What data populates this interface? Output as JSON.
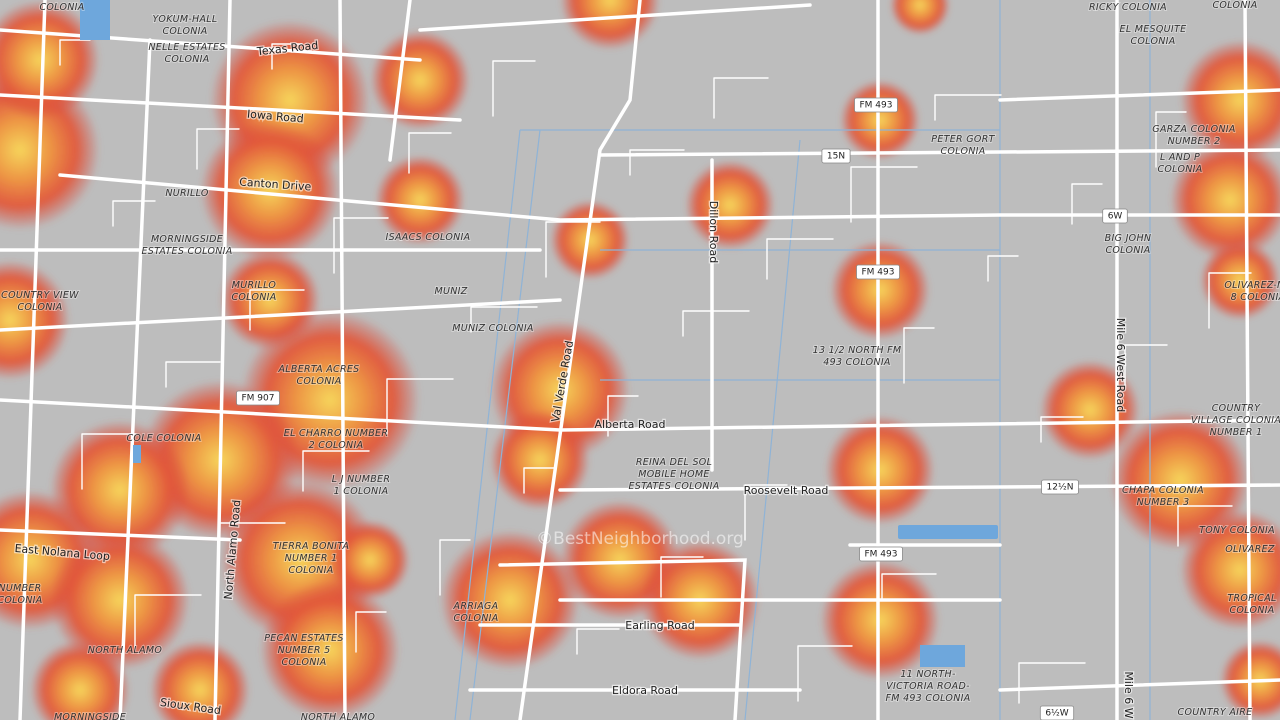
{
  "watermark": "©BestNeighborhood.org",
  "places": [
    [
      "COLONIA"
    ],
    [
      "YOKUM-HALL",
      "COLONIA"
    ],
    [
      "NELLE ESTATES",
      "COLONIA"
    ],
    [
      "NURILLO"
    ],
    [
      "MORNINGSIDE",
      "ESTATES COLONIA"
    ],
    [
      "ISAACS COLONIA"
    ],
    [
      "MUNIZ"
    ],
    [
      "MUNIZ COLONIA"
    ],
    [
      "MURILLO",
      "COLONIA"
    ],
    [
      "COUNTRY VIEW",
      "COLONIA"
    ],
    [
      "ALBERTA ACRES",
      "COLONIA"
    ],
    [
      "COLE COLONIA"
    ],
    [
      "EL CHARRO NUMBER",
      "2 COLONIA"
    ],
    [
      "L J NUMBER",
      "1 COLONIA"
    ],
    [
      "TIERRA BONITA",
      "NUMBER 1",
      "COLONIA"
    ],
    [
      "ARRIAGA",
      "COLONIA"
    ],
    [
      "PECAN ESTATES",
      "NUMBER 5",
      "COLONIA"
    ],
    [
      "NORTH ALAMO"
    ],
    [
      "MORNINGSIDE"
    ],
    [
      "NORTH ALAMO"
    ],
    [
      "REINA DEL SOL",
      "MOBILE HOME",
      "ESTATES COLONIA"
    ],
    [
      "PETER GORT",
      "COLONIA"
    ],
    [
      "13 1/2 NORTH FM",
      "493 COLONIA"
    ],
    [
      "11 NORTH-",
      "VICTORIA ROAD-",
      "FM 493 COLONIA"
    ],
    [
      "RICKY COLONIA"
    ],
    [
      "EL MESQUITE",
      "COLONIA"
    ],
    [
      "GARZA COLONIA",
      "NUMBER 2"
    ],
    [
      "L AND P",
      "COLONIA"
    ],
    [
      "BIG JOHN",
      "COLONIA"
    ],
    [
      "OLIVAREZ-NU",
      "8 COLONIA"
    ],
    [
      "COUNTRY",
      "VILLAGE COLONIA",
      "NUMBER 1"
    ],
    [
      "CHAPA COLONIA",
      "NUMBER 3"
    ],
    [
      "TONY COLONIA"
    ],
    [
      "OLIVAREZ"
    ],
    [
      "TROPICAL",
      "COLONIA"
    ],
    [
      "COUNTRY AIRE"
    ],
    [
      "NUMBER",
      "COLONIA"
    ],
    [
      "COLONIA"
    ]
  ],
  "roads": [
    "Texas Road",
    "Iowa Road",
    "Canton Drive",
    "Val Verde Road",
    "Dillon Road",
    "Alberta Road",
    "Roosevelt Road",
    "East Nolana Loop",
    "North Alamo Road",
    "Earling Road",
    "Eldora Road",
    "Sioux Road",
    "Mile 6 West Road",
    "Mile 6 W"
  ],
  "shields": [
    "FM 493",
    "15N",
    "FM 493",
    "FM 907",
    "6W",
    "12½N",
    "FM 493",
    "6½W"
  ]
}
